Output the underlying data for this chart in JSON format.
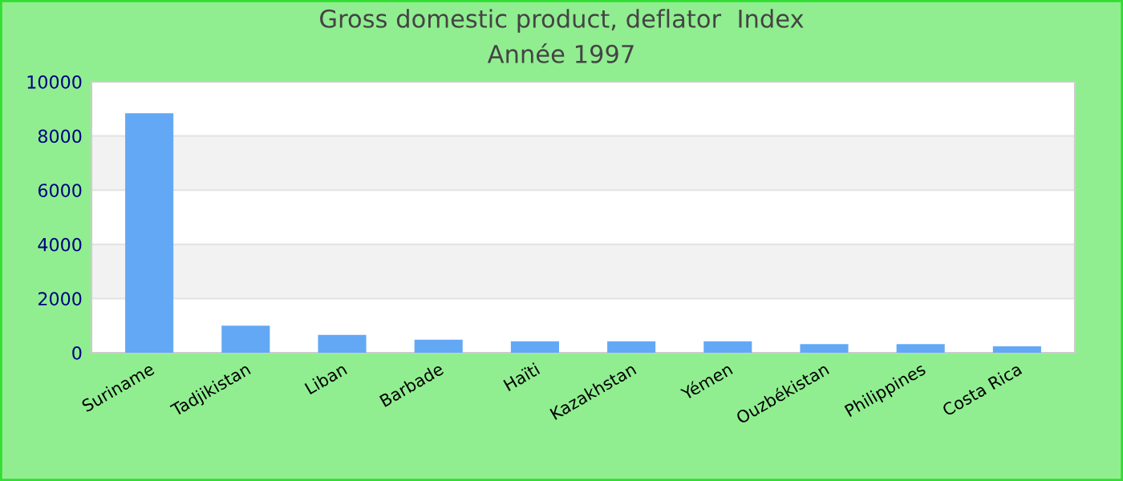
{
  "chart_data": {
    "type": "bar",
    "title": "Gross domestic product, deflator  Index",
    "subtitle": "Année 1997",
    "categories": [
      "Suriname",
      "Tadjikistan",
      "Liban",
      "Barbade",
      "Haïti",
      "Kazakhstan",
      "Yémen",
      "Ouzbékistan",
      "Philippines",
      "Costa Rica"
    ],
    "values": [
      8840,
      1000,
      660,
      480,
      420,
      420,
      420,
      320,
      320,
      240
    ],
    "color": "#63a8f5",
    "ylim": [
      0,
      10000
    ],
    "yticks": [
      0,
      2000,
      4000,
      6000,
      8000,
      10000
    ],
    "grid": "y",
    "legend": false
  }
}
